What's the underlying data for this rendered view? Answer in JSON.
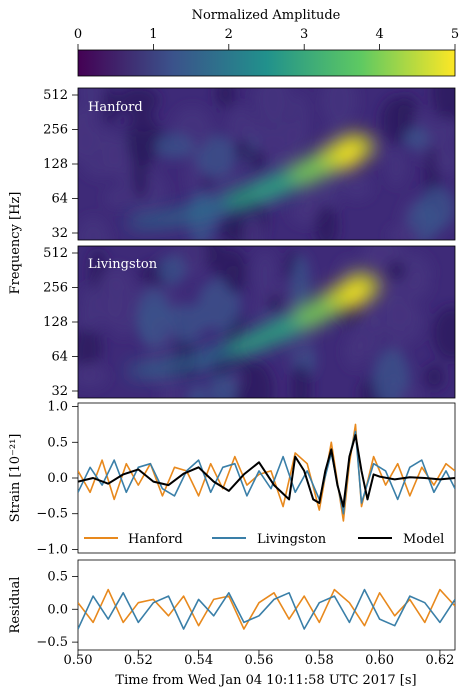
{
  "colorbar": {
    "label": "Normalized Amplitude",
    "ticks": [
      "0",
      "1",
      "2",
      "3",
      "4",
      "5"
    ],
    "range": [
      0,
      5
    ],
    "colormap": [
      "#440154",
      "#3b528b",
      "#21918c",
      "#5ec962",
      "#fde725"
    ]
  },
  "spectrograms": [
    {
      "label": "Hanford",
      "yticks": [
        "512",
        "256",
        "128",
        "64",
        "32"
      ],
      "track": {
        "f_start": 40,
        "f_end": 180,
        "t_peak": 0.592
      }
    },
    {
      "label": "Livingston",
      "yticks": [
        "512",
        "256",
        "128",
        "64",
        "32"
      ],
      "track": {
        "f_start": 48,
        "f_end": 260,
        "t_peak": 0.594
      }
    }
  ],
  "freq_ylabel": "Frequency [Hz]",
  "strain_ylabel": "Strain [10⁻²¹]",
  "strain_yticks": [
    "1.0",
    "0.5",
    "0.0",
    "−0.5",
    "−1.0"
  ],
  "residual_ylabel": "Residual",
  "residual_yticks": [
    "0.5",
    "0.0",
    "−0.5"
  ],
  "xlabel": "Time from Wed Jan 04 10:11:58 UTC 2017 [s]",
  "xticks": [
    "0.50",
    "0.52",
    "0.54",
    "0.56",
    "0.58",
    "0.60",
    "0.62"
  ],
  "legend": [
    "Hanford",
    "Livingston",
    "Model"
  ],
  "colors": {
    "hanford": "#e8891d",
    "livingston": "#3a7fa8",
    "model": "#000000"
  },
  "chart_data": {
    "type": "line",
    "x_range": [
      0.5,
      0.625
    ],
    "strain_ylim": [
      -1.05,
      1.05
    ],
    "residual_ylim": [
      -0.62,
      0.75
    ],
    "series": [
      {
        "name": "Model",
        "x": [
          0.5,
          0.505,
          0.51,
          0.515,
          0.52,
          0.525,
          0.53,
          0.535,
          0.54,
          0.545,
          0.55,
          0.555,
          0.56,
          0.565,
          0.57,
          0.572,
          0.575,
          0.578,
          0.58,
          0.582,
          0.584,
          0.586,
          0.588,
          0.59,
          0.592,
          0.594,
          0.596,
          0.598,
          0.6,
          0.605,
          0.61,
          0.615,
          0.62,
          0.625
        ],
        "y": [
          -0.05,
          0.0,
          -0.08,
          0.05,
          0.12,
          -0.05,
          -0.1,
          0.06,
          0.15,
          -0.05,
          -0.18,
          0.05,
          0.22,
          -0.1,
          -0.3,
          0.3,
          0.1,
          -0.3,
          -0.35,
          0.1,
          0.4,
          -0.1,
          -0.4,
          0.3,
          0.6,
          0.1,
          -0.3,
          0.05,
          0.02,
          -0.02,
          0.01,
          0.0,
          -0.02,
          0.0
        ]
      },
      {
        "name": "Hanford",
        "x": [
          0.5,
          0.504,
          0.508,
          0.512,
          0.516,
          0.52,
          0.524,
          0.528,
          0.532,
          0.536,
          0.54,
          0.544,
          0.548,
          0.552,
          0.556,
          0.56,
          0.564,
          0.568,
          0.572,
          0.576,
          0.58,
          0.584,
          0.588,
          0.59,
          0.592,
          0.594,
          0.598,
          0.602,
          0.606,
          0.61,
          0.614,
          0.618,
          0.622,
          0.625
        ],
        "y": [
          0.1,
          -0.2,
          0.25,
          -0.3,
          0.2,
          -0.1,
          0.2,
          -0.25,
          0.15,
          0.1,
          -0.25,
          0.2,
          -0.15,
          0.3,
          -0.1,
          0.05,
          0.1,
          -0.4,
          0.35,
          0.2,
          -0.45,
          0.5,
          -0.6,
          0.2,
          0.75,
          -0.4,
          0.3,
          -0.1,
          0.2,
          -0.25,
          0.15,
          -0.1,
          0.2,
          0.1
        ]
      },
      {
        "name": "Livingston",
        "x": [
          0.5,
          0.504,
          0.508,
          0.512,
          0.516,
          0.52,
          0.524,
          0.528,
          0.532,
          0.536,
          0.54,
          0.544,
          0.548,
          0.552,
          0.556,
          0.56,
          0.564,
          0.568,
          0.572,
          0.576,
          0.58,
          0.584,
          0.588,
          0.59,
          0.592,
          0.594,
          0.598,
          0.602,
          0.606,
          0.61,
          0.614,
          0.618,
          0.622,
          0.625
        ],
        "y": [
          -0.2,
          0.15,
          -0.1,
          0.25,
          -0.2,
          0.15,
          0.2,
          -0.15,
          -0.25,
          0.1,
          0.25,
          -0.2,
          0.15,
          0.2,
          -0.25,
          0.1,
          -0.15,
          0.3,
          -0.2,
          0.1,
          -0.3,
          0.35,
          -0.5,
          0.3,
          0.65,
          -0.35,
          0.2,
          0.1,
          -0.3,
          0.15,
          0.25,
          -0.2,
          0.1,
          -0.15
        ]
      }
    ],
    "residuals": [
      {
        "name": "Hanford",
        "x": [
          0.5,
          0.505,
          0.51,
          0.515,
          0.52,
          0.525,
          0.53,
          0.535,
          0.54,
          0.545,
          0.55,
          0.555,
          0.56,
          0.565,
          0.57,
          0.575,
          0.58,
          0.585,
          0.59,
          0.595,
          0.6,
          0.605,
          0.61,
          0.615,
          0.62,
          0.625
        ],
        "y": [
          0.1,
          -0.2,
          0.3,
          -0.2,
          0.1,
          0.15,
          -0.1,
          0.2,
          -0.25,
          0.15,
          0.2,
          -0.3,
          0.1,
          0.25,
          -0.15,
          0.2,
          -0.2,
          0.3,
          0.1,
          -0.25,
          0.25,
          -0.1,
          0.15,
          -0.2,
          0.3,
          0.05
        ]
      },
      {
        "name": "Livingston",
        "x": [
          0.5,
          0.505,
          0.51,
          0.515,
          0.52,
          0.525,
          0.53,
          0.535,
          0.54,
          0.545,
          0.55,
          0.555,
          0.56,
          0.565,
          0.57,
          0.575,
          0.58,
          0.585,
          0.59,
          0.595,
          0.6,
          0.605,
          0.61,
          0.615,
          0.62,
          0.625
        ],
        "y": [
          -0.3,
          0.2,
          -0.15,
          0.25,
          -0.2,
          0.1,
          0.2,
          -0.3,
          0.15,
          -0.1,
          0.25,
          -0.2,
          -0.1,
          0.15,
          0.25,
          -0.3,
          0.1,
          0.2,
          -0.2,
          0.3,
          -0.15,
          -0.25,
          0.2,
          0.1,
          -0.2,
          0.15
        ]
      }
    ]
  }
}
